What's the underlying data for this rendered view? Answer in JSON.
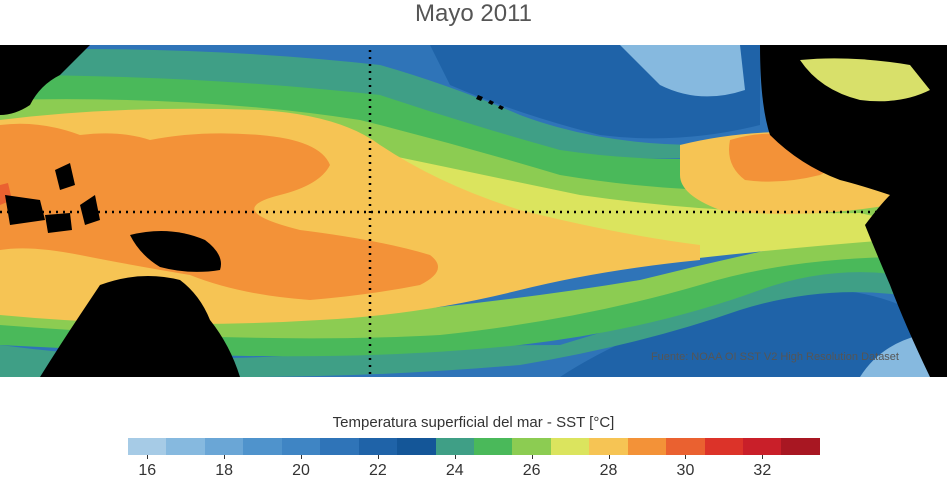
{
  "title": "Mayo 2011",
  "source_note": "Fuente: NOAA OI SST V2 High Resolution Dataset",
  "colorbar": {
    "label": "Temperatura superficial del mar - SST  [°C]",
    "colors": [
      "#a6cbe6",
      "#86b9df",
      "#6aa6d6",
      "#4f93cc",
      "#3f85c4",
      "#2f74b8",
      "#1f63a8",
      "#145698",
      "#3f9f86",
      "#4ab95a",
      "#8ccc52",
      "#dbe45e",
      "#f6c454",
      "#f39238",
      "#ea6130",
      "#dc3329",
      "#c91f29",
      "#a81722"
    ],
    "ticks": [
      {
        "label": "16",
        "index": 0.5
      },
      {
        "label": "18",
        "index": 2.5
      },
      {
        "label": "20",
        "index": 4.5
      },
      {
        "label": "22",
        "index": 6.5
      },
      {
        "label": "24",
        "index": 8.5
      },
      {
        "label": "26",
        "index": 10.5
      },
      {
        "label": "28",
        "index": 12.5
      },
      {
        "label": "30",
        "index": 14.5
      },
      {
        "label": "32",
        "index": 16.5
      }
    ]
  },
  "map_colors": {
    "cold_blue": "#2f74b8",
    "deep_blue": "#1f63a8",
    "light_blue": "#86b9df",
    "teal": "#3f9f86",
    "green": "#4ab95a",
    "light_green": "#8ccc52",
    "yellow": "#dbe45e",
    "light_orange": "#f6c454",
    "orange": "#f39238",
    "red_orange": "#ea6130",
    "land": "#000000",
    "grid": "#000000"
  }
}
